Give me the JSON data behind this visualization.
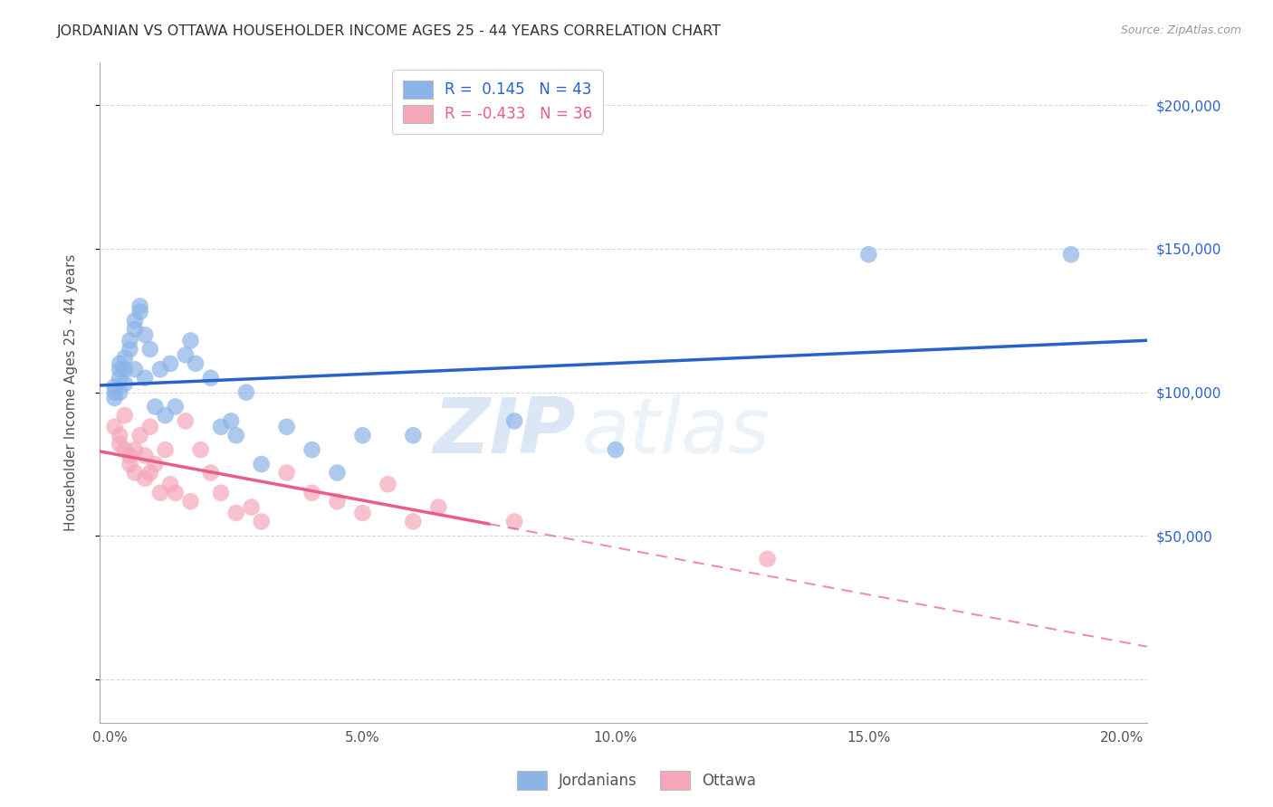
{
  "title": "JORDANIAN VS OTTAWA HOUSEHOLDER INCOME AGES 25 - 44 YEARS CORRELATION CHART",
  "source": "Source: ZipAtlas.com",
  "ylabel": "Householder Income Ages 25 - 44 years",
  "xlabel_ticks": [
    "0.0%",
    "5.0%",
    "10.0%",
    "15.0%",
    "20.0%"
  ],
  "xlabel_vals": [
    0.0,
    0.05,
    0.1,
    0.15,
    0.2
  ],
  "ylabel_ticks": [
    0,
    50000,
    100000,
    150000,
    200000
  ],
  "ylabel_labels": [
    "",
    "$50,000",
    "$100,000",
    "$150,000",
    "$200,000"
  ],
  "xlim": [
    -0.002,
    0.205
  ],
  "ylim": [
    -15000,
    215000
  ],
  "r_jordan": 0.145,
  "n_jordan": 43,
  "r_ottawa": -0.433,
  "n_ottawa": 36,
  "jordan_color": "#8ab4e8",
  "ottawa_color": "#f4a7b9",
  "jordan_line_color": "#2962cc",
  "ottawa_line_color": "#e85d8a",
  "jordan_x": [
    0.001,
    0.001,
    0.001,
    0.002,
    0.002,
    0.002,
    0.002,
    0.003,
    0.003,
    0.003,
    0.004,
    0.004,
    0.005,
    0.005,
    0.005,
    0.006,
    0.006,
    0.007,
    0.007,
    0.008,
    0.009,
    0.01,
    0.011,
    0.012,
    0.013,
    0.015,
    0.016,
    0.017,
    0.02,
    0.022,
    0.024,
    0.025,
    0.027,
    0.03,
    0.035,
    0.04,
    0.045,
    0.05,
    0.06,
    0.08,
    0.1,
    0.15,
    0.19
  ],
  "jordan_y": [
    102000,
    100000,
    98000,
    110000,
    108000,
    105000,
    100000,
    112000,
    108000,
    103000,
    118000,
    115000,
    125000,
    122000,
    108000,
    130000,
    128000,
    120000,
    105000,
    115000,
    95000,
    108000,
    92000,
    110000,
    95000,
    113000,
    118000,
    110000,
    105000,
    88000,
    90000,
    85000,
    100000,
    75000,
    88000,
    80000,
    72000,
    85000,
    85000,
    90000,
    80000,
    148000,
    148000
  ],
  "ottawa_x": [
    0.001,
    0.002,
    0.002,
    0.003,
    0.003,
    0.004,
    0.004,
    0.005,
    0.005,
    0.006,
    0.007,
    0.007,
    0.008,
    0.008,
    0.009,
    0.01,
    0.011,
    0.012,
    0.013,
    0.015,
    0.016,
    0.018,
    0.02,
    0.022,
    0.025,
    0.028,
    0.03,
    0.035,
    0.04,
    0.045,
    0.05,
    0.055,
    0.06,
    0.065,
    0.08,
    0.13
  ],
  "ottawa_y": [
    88000,
    85000,
    82000,
    92000,
    80000,
    78000,
    75000,
    80000,
    72000,
    85000,
    70000,
    78000,
    88000,
    72000,
    75000,
    65000,
    80000,
    68000,
    65000,
    90000,
    62000,
    80000,
    72000,
    65000,
    58000,
    60000,
    55000,
    72000,
    65000,
    62000,
    58000,
    68000,
    55000,
    60000,
    55000,
    42000
  ],
  "watermark_zip": "ZIP",
  "watermark_atlas": "atlas",
  "background_color": "#ffffff",
  "grid_color": "#cccccc"
}
